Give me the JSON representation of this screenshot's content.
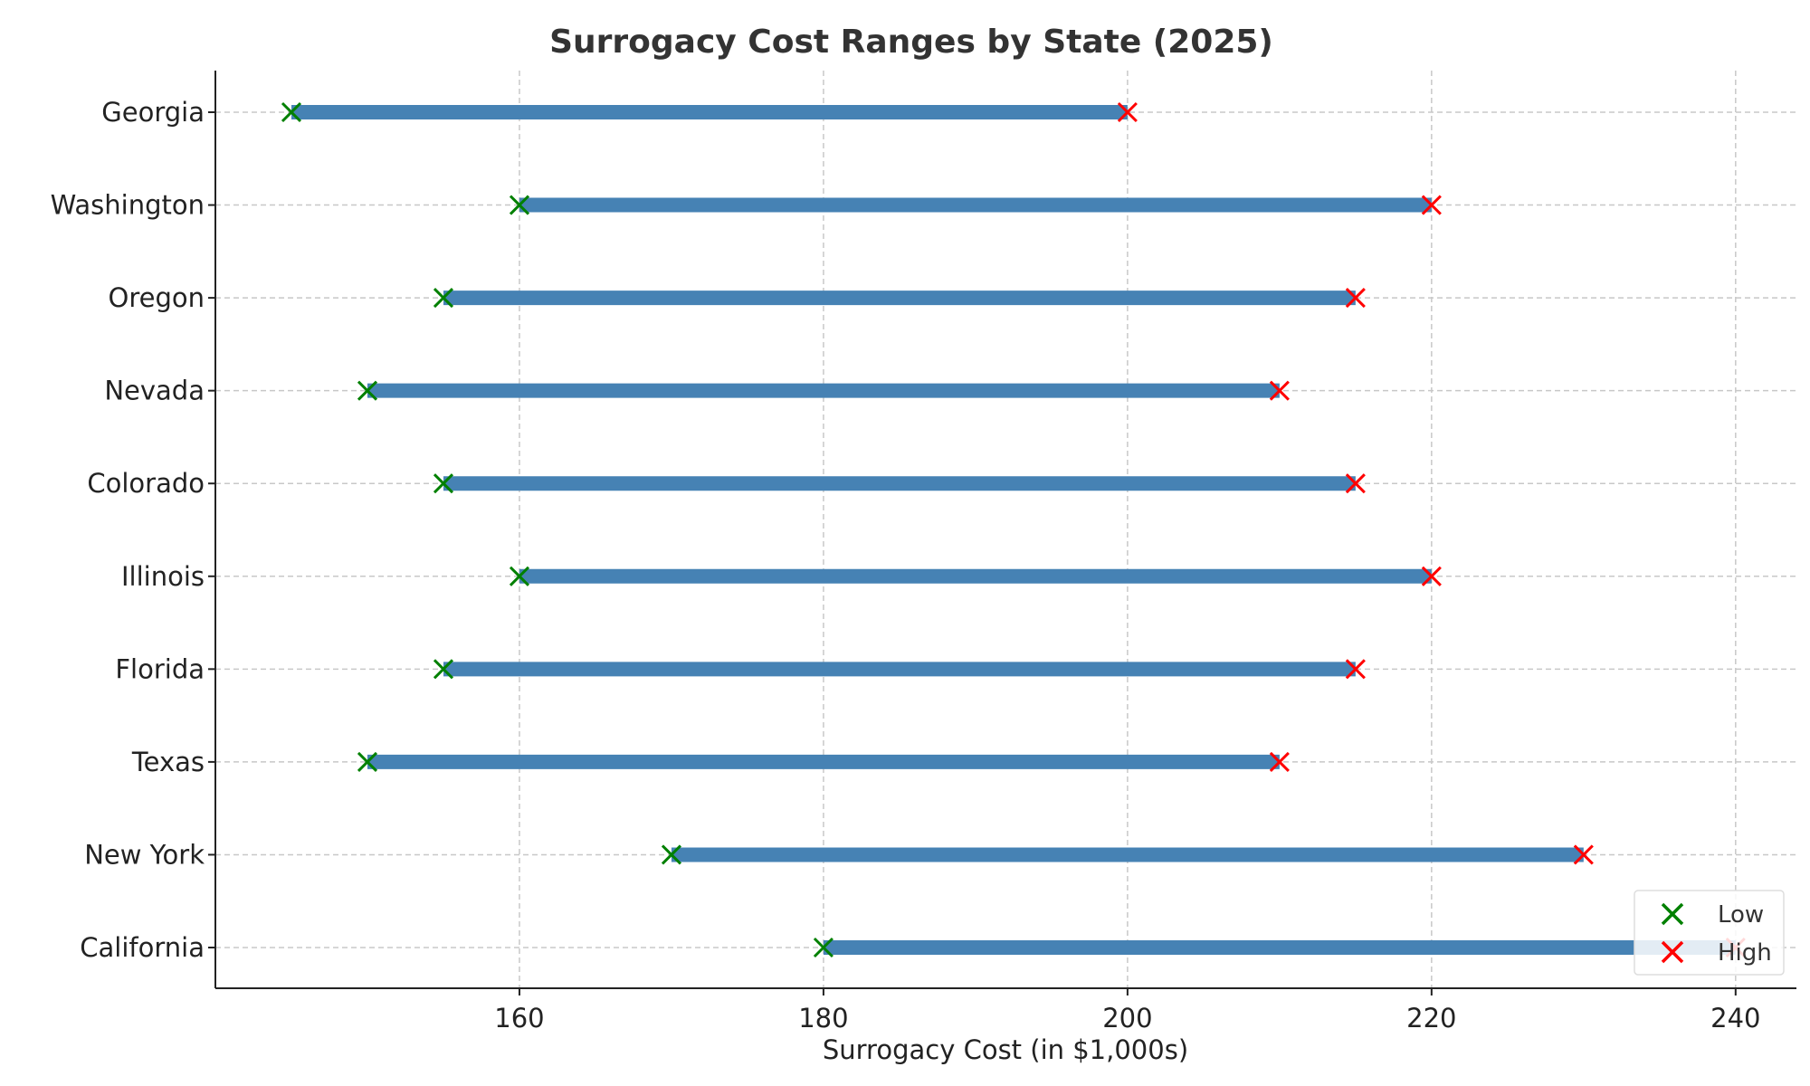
{
  "chart_data": {
    "type": "range",
    "title": "Surrogacy Cost Ranges by State (2025)",
    "xlabel": "Surrogacy Cost (in $1,000s)",
    "ylabel": "",
    "xlim": [
      140,
      244
    ],
    "xticks": [
      160,
      180,
      200,
      220,
      240
    ],
    "grid": true,
    "legend_position": "lower-right",
    "legend": [
      {
        "label": "Low",
        "marker": "x",
        "color": "#008000"
      },
      {
        "label": "High",
        "marker": "x",
        "color": "#ff0000"
      }
    ],
    "bar_color": "#4682b4",
    "categories": [
      "California",
      "New York",
      "Texas",
      "Florida",
      "Illinois",
      "Colorado",
      "Nevada",
      "Oregon",
      "Washington",
      "Georgia"
    ],
    "low": [
      180,
      170,
      150,
      155,
      160,
      155,
      150,
      155,
      160,
      145
    ],
    "high": [
      240,
      230,
      210,
      215,
      220,
      215,
      210,
      215,
      220,
      200
    ]
  }
}
